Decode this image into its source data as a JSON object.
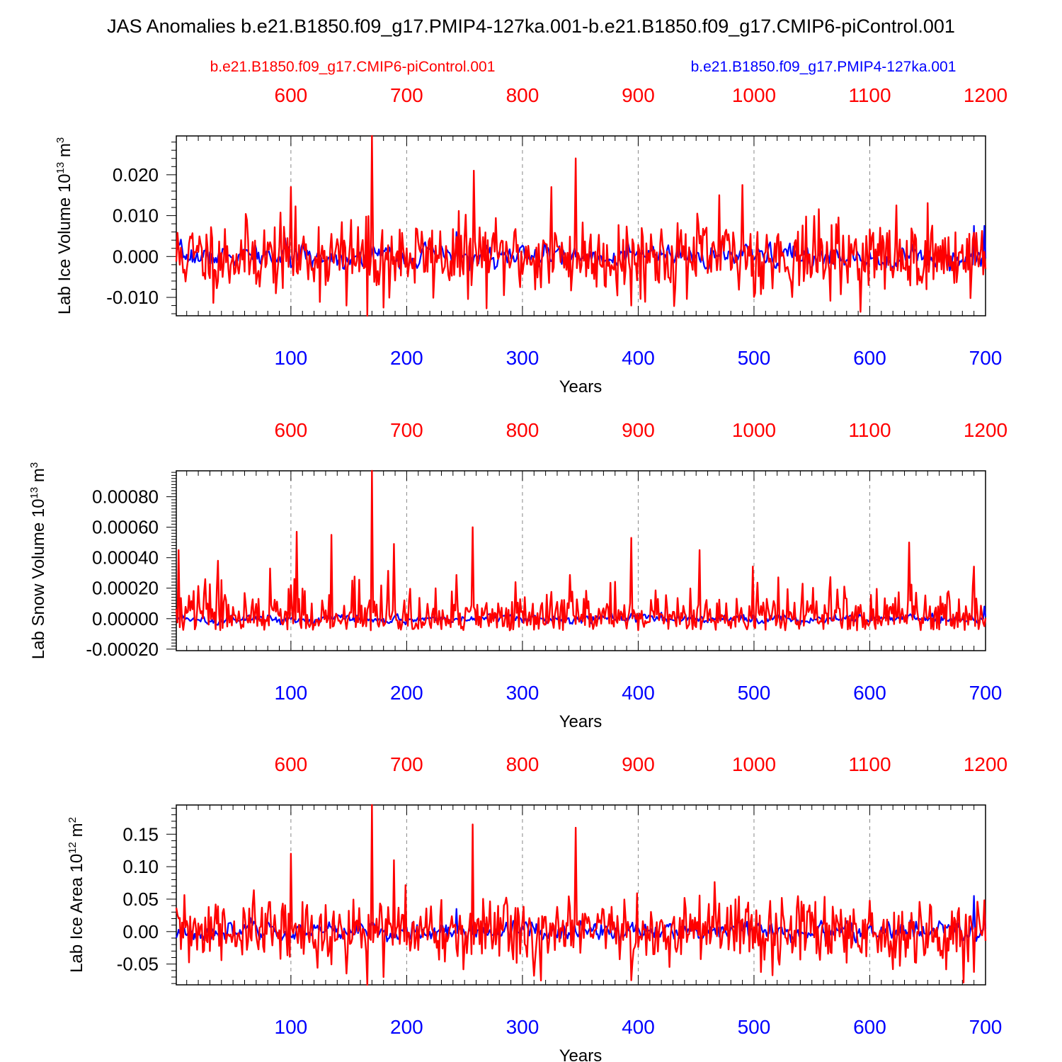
{
  "title": "JAS Anomalies b.e21.B1850.f09_g17.PMIP4-127ka.001-b.e21.B1850.f09_g17.CMIP6-piControl.001",
  "legend": {
    "control": "b.e21.B1850.f09_g17.CMIP6-piControl.001",
    "pmip": "b.e21.B1850.f09_g17.PMIP4-127ka.001"
  },
  "colors": {
    "control": "#ff0000",
    "pmip": "#0000ff",
    "axis": "#000000",
    "grid": "#888888"
  },
  "chart_data": [
    {
      "type": "line",
      "ylabel_main": "Lab Ice Volume 10",
      "ylabel_exp": "13",
      "ylabel_unit": " m",
      "ylabel_unit_exp": "3",
      "xlabel": "Years",
      "xlim": [
        1,
        700
      ],
      "top_xlim": [
        501,
        1200
      ],
      "ylim": [
        -0.0145,
        0.0295
      ],
      "yticks": [
        -0.01,
        0.0,
        0.01,
        0.02
      ],
      "ytick_labels": [
        "-0.010",
        "0.000",
        "0.010",
        "0.020"
      ],
      "bottom_ticks": [
        100,
        200,
        300,
        400,
        500,
        600,
        700
      ],
      "bottom_tick_labels": [
        "100",
        "200",
        "300",
        "400",
        "500",
        "600",
        "700"
      ],
      "top_tick_labels": [
        "600",
        "700",
        "800",
        "900",
        "1000",
        "1100",
        "1200"
      ],
      "series": [
        {
          "name": "b.e21.B1850.f09_g17.CMIP6-piControl.001",
          "seed": 11,
          "sigma": 0.0045,
          "peaks": [
            [
              170,
              0.0295
            ],
            [
              166,
              -0.0145
            ],
            [
              148,
              -0.012
            ],
            [
              180,
              -0.0125
            ],
            [
              100,
              0.017
            ],
            [
              346,
              0.024
            ],
            [
              394,
              -0.012
            ],
            [
              490,
              0.0175
            ],
            [
              258,
              0.021
            ],
            [
              325,
              0.017
            ],
            [
              470,
              0.015
            ]
          ]
        },
        {
          "name": "b.e21.B1850.f09_g17.PMIP4-127ka.001",
          "seed": 7,
          "sigma": 0.0011,
          "peaks": [
            [
              243,
              0.006
            ],
            [
              690,
              0.0075
            ],
            [
              699,
              0.0075
            ]
          ]
        }
      ]
    },
    {
      "type": "line",
      "ylabel_main": "Lab Snow Volume 10",
      "ylabel_exp": "13",
      "ylabel_unit": " m",
      "ylabel_unit_exp": "3",
      "xlabel": "Years",
      "xlim": [
        1,
        700
      ],
      "top_xlim": [
        501,
        1200
      ],
      "ylim": [
        -0.00021,
        0.00097
      ],
      "yticks": [
        -0.0002,
        0.0,
        0.0002,
        0.0004,
        0.0006,
        0.0008
      ],
      "ytick_labels": [
        "-0.00020",
        "0.00000",
        "0.00020",
        "0.00040",
        "0.00060",
        "0.00080"
      ],
      "bottom_ticks": [
        100,
        200,
        300,
        400,
        500,
        600,
        700
      ],
      "bottom_tick_labels": [
        "100",
        "200",
        "300",
        "400",
        "500",
        "600",
        "700"
      ],
      "top_tick_labels": [
        "600",
        "700",
        "800",
        "900",
        "1000",
        "1100",
        "1200"
      ],
      "series": [
        {
          "name": "b.e21.B1850.f09_g17.CMIP6-piControl.001",
          "seed": 23,
          "sigma": 0.00011,
          "peaks": [
            [
              170,
              0.00097
            ],
            [
              3,
              0.00045
            ],
            [
              105,
              0.00057
            ],
            [
              135,
              0.00055
            ],
            [
              189,
              0.00049
            ],
            [
              257,
              0.0006
            ],
            [
              394,
              0.00053
            ],
            [
              634,
              0.0005
            ],
            [
              37,
              0.00038
            ],
            [
              453,
              0.00045
            ]
          ]
        },
        {
          "name": "b.e21.B1850.f09_g17.PMIP4-127ka.001",
          "seed": 5,
          "sigma": 1.2e-05,
          "peaks": [
            [
              699,
              8e-05
            ],
            [
              602,
              4e-05
            ],
            [
              420,
              4e-05
            ]
          ]
        }
      ]
    },
    {
      "type": "line",
      "ylabel_main": "Lab Ice Area 10",
      "ylabel_exp": "12",
      "ylabel_unit": " m",
      "ylabel_unit_exp": "2",
      "xlabel": "Years",
      "xlim": [
        1,
        700
      ],
      "top_xlim": [
        501,
        1200
      ],
      "ylim": [
        -0.082,
        0.195
      ],
      "yticks": [
        -0.05,
        0.0,
        0.05,
        0.1,
        0.15
      ],
      "ytick_labels": [
        "-0.05",
        "0.00",
        "0.05",
        "0.10",
        "0.15"
      ],
      "bottom_ticks": [
        100,
        200,
        300,
        400,
        500,
        600,
        700
      ],
      "bottom_tick_labels": [
        "100",
        "200",
        "300",
        "400",
        "500",
        "600",
        "700"
      ],
      "top_tick_labels": [
        "600",
        "700",
        "800",
        "900",
        "1000",
        "1100",
        "1200"
      ],
      "series": [
        {
          "name": "b.e21.B1850.f09_g17.CMIP6-piControl.001",
          "seed": 31,
          "sigma": 0.026,
          "peaks": [
            [
              170,
              0.195
            ],
            [
              166,
              -0.082
            ],
            [
              100,
              0.12
            ],
            [
              257,
              0.165
            ],
            [
              346,
              0.16
            ],
            [
              189,
              0.11
            ],
            [
              394,
              -0.075
            ],
            [
              180,
              -0.07
            ],
            [
              310,
              -0.068
            ]
          ]
        },
        {
          "name": "b.e21.B1850.f09_g17.PMIP4-127ka.001",
          "seed": 3,
          "sigma": 0.006,
          "peaks": [
            [
              243,
              0.035
            ],
            [
              690,
              0.055
            ],
            [
              699,
              0.04
            ]
          ]
        }
      ]
    }
  ]
}
